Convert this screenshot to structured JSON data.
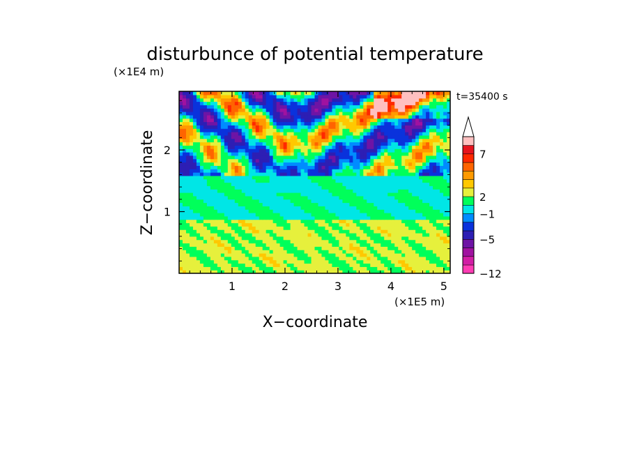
{
  "chart_data": {
    "type": "heatmap",
    "title": "disturbunce of potential temperature",
    "time_label": "t=35400 s",
    "xlabel": "X−coordinate",
    "ylabel": "Z−coordinate",
    "x_scale_label": "(×1E5 m)",
    "y_scale_label": "(×1E4 m)",
    "xlim": [
      0,
      5.12
    ],
    "ylim": [
      0,
      2.95
    ],
    "x_ticks": [
      {
        "value": 1,
        "label": "1"
      },
      {
        "value": 2,
        "label": "2"
      },
      {
        "value": 3,
        "label": "3"
      },
      {
        "value": 4,
        "label": "4"
      },
      {
        "value": 5,
        "label": "5"
      }
    ],
    "y_ticks": [
      {
        "value": 1,
        "label": "1"
      },
      {
        "value": 2,
        "label": "2"
      }
    ],
    "colorbar": {
      "levels": [
        {
          "color": "#ff3cb4"
        },
        {
          "color": "#d21ea5"
        },
        {
          "color": "#a012a0"
        },
        {
          "color": "#6e14a5"
        },
        {
          "color": "#2d1eb4"
        },
        {
          "color": "#0a32dc"
        },
        {
          "color": "#008cff"
        },
        {
          "color": "#00e6e6"
        },
        {
          "color": "#00ff5a"
        },
        {
          "color": "#e6f03c"
        },
        {
          "color": "#ffc800"
        },
        {
          "color": "#ff9a00"
        },
        {
          "color": "#ff6400"
        },
        {
          "color": "#ff2800"
        },
        {
          "color": "#e6141e"
        },
        {
          "color": "#ffc0c0"
        }
      ],
      "extend": "max",
      "labels": [
        {
          "value": "7",
          "at_boundary": 14
        },
        {
          "value": "2",
          "at_boundary": 9
        },
        {
          "value": "−1",
          "at_boundary": 7
        },
        {
          "value": "−5",
          "at_boundary": 4
        },
        {
          "value": "−12",
          "at_boundary": 0
        }
      ]
    },
    "field_bands": [
      {
        "z_range": [
          0,
          0.33
        ],
        "dominant_color": "#ffc800",
        "description": "yellow/orange near surface"
      },
      {
        "z_range": [
          0.33,
          0.9
        ],
        "dominant_color": "#e6f03c",
        "description": "yellow, orange patches"
      },
      {
        "z_range": [
          0.9,
          1.6
        ],
        "dominant_color": "#00ff5a",
        "description": "green"
      },
      {
        "z_range": [
          1.6,
          2.95
        ],
        "dominant_color": "#ff9a00",
        "description": "alternating orange/blue wave bands"
      }
    ]
  }
}
